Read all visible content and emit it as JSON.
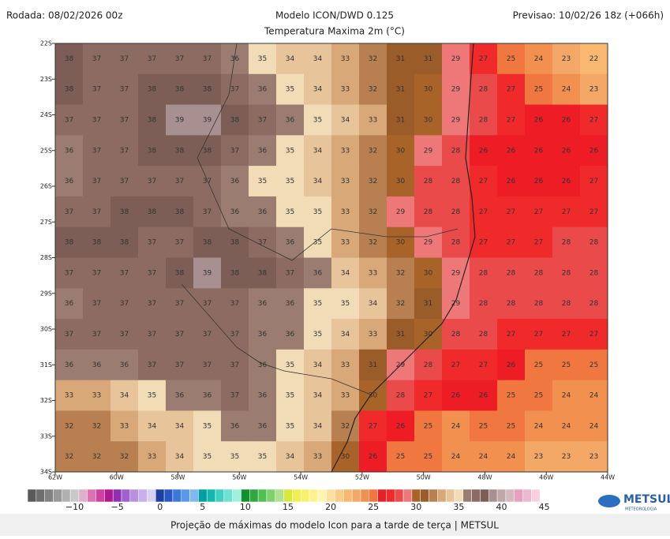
{
  "header": {
    "run": "Rodada: 08/02/2026 00z",
    "title": "Modelo ICON/DWD 0.125",
    "subtitle": "Temperatura Maxima 2m (°C)",
    "forecast": "Previsao: 10/02/26 18z (+066h)"
  },
  "map": {
    "lat_labels": [
      "22S",
      "23S",
      "24S",
      "25S",
      "26S",
      "27S",
      "28S",
      "29S",
      "30S",
      "31S",
      "32S",
      "33S",
      "34S"
    ],
    "lon_labels": [
      "62W",
      "60W",
      "58W",
      "56W",
      "54W",
      "52W",
      "50W",
      "48W",
      "46W",
      "44W"
    ],
    "temperature_grid": [
      [
        38,
        37,
        37,
        37,
        37,
        37,
        36,
        35,
        34,
        34,
        33,
        32,
        31,
        31,
        29,
        27,
        25,
        24,
        23,
        22
      ],
      [
        38,
        37,
        37,
        38,
        38,
        38,
        37,
        36,
        35,
        34,
        33,
        32,
        31,
        30,
        29,
        28,
        27,
        25,
        24,
        23
      ],
      [
        37,
        37,
        37,
        38,
        39,
        39,
        38,
        37,
        36,
        35,
        34,
        33,
        31,
        30,
        29,
        28,
        27,
        26,
        26,
        27
      ],
      [
        36,
        37,
        37,
        38,
        38,
        38,
        37,
        36,
        35,
        34,
        33,
        32,
        30,
        29,
        28,
        26,
        26,
        26,
        26,
        26
      ],
      [
        36,
        37,
        37,
        37,
        37,
        37,
        36,
        35,
        35,
        34,
        33,
        32,
        30,
        28,
        28,
        27,
        26,
        26,
        26,
        27
      ],
      [
        37,
        37,
        38,
        38,
        38,
        37,
        36,
        36,
        35,
        35,
        33,
        32,
        29,
        28,
        28,
        27,
        27,
        27,
        27,
        27
      ],
      [
        38,
        38,
        38,
        37,
        37,
        38,
        38,
        37,
        36,
        35,
        33,
        32,
        30,
        29,
        28,
        27,
        27,
        27,
        28,
        28
      ],
      [
        37,
        37,
        37,
        37,
        38,
        39,
        38,
        38,
        37,
        36,
        34,
        33,
        32,
        30,
        29,
        28,
        28,
        28,
        28,
        28
      ],
      [
        36,
        37,
        37,
        37,
        37,
        37,
        37,
        36,
        36,
        35,
        35,
        34,
        32,
        31,
        29,
        28,
        28,
        28,
        28,
        28
      ],
      [
        37,
        37,
        37,
        37,
        37,
        37,
        37,
        36,
        36,
        35,
        34,
        33,
        31,
        30,
        28,
        28,
        27,
        27,
        27,
        27
      ],
      [
        36,
        36,
        36,
        37,
        37,
        37,
        37,
        36,
        35,
        34,
        33,
        31,
        29,
        28,
        27,
        27,
        26,
        25,
        25,
        25
      ],
      [
        33,
        33,
        34,
        35,
        36,
        36,
        37,
        36,
        35,
        34,
        33,
        30,
        28,
        27,
        26,
        26,
        25,
        25,
        24,
        24
      ],
      [
        32,
        32,
        33,
        34,
        34,
        35,
        36,
        36,
        35,
        34,
        32,
        27,
        26,
        25,
        24,
        25,
        25,
        24,
        24,
        24
      ],
      [
        32,
        32,
        32,
        33,
        34,
        35,
        35,
        35,
        34,
        33,
        30,
        26,
        25,
        25,
        24,
        24,
        24,
        23,
        23,
        23
      ]
    ]
  },
  "colorbar": {
    "range": [
      -15,
      46
    ],
    "colors": [
      "#5a5a5a",
      "#6e6e6e",
      "#828282",
      "#999999",
      "#b0b0b0",
      "#c8c8c8",
      "#e0b0c8",
      "#e070b0",
      "#d040a0",
      "#b01890",
      "#9030b0",
      "#a060d0",
      "#b890e0",
      "#c8b0ec",
      "#d8d0f4",
      "#1f3fa0",
      "#2858c0",
      "#3c78d8",
      "#5a98e8",
      "#80b8f0",
      "#00a0a0",
      "#10b8b0",
      "#40d0c0",
      "#70e0d0",
      "#a0f0e0",
      "#109030",
      "#30a840",
      "#50c050",
      "#80d070",
      "#b0e090",
      "#d8e840",
      "#f0f050",
      "#f8f070",
      "#fff090",
      "#fff4b0",
      "#fde0a0",
      "#fbcc88",
      "#f8b870",
      "#f4a868",
      "#f29050",
      "#f07840",
      "#ee1c24",
      "#f02a2a",
      "#ea4a4a",
      "#ee7878",
      "#a86428",
      "#9a5c28",
      "#b88050",
      "#d8a878",
      "#e8c49a",
      "#f2dcb8",
      "#9a7c70",
      "#8c6c62",
      "#7c5e56",
      "#a89090",
      "#c0a8a8",
      "#d8b8c0",
      "#e8a0c0",
      "#f0b8d0",
      "#f8d0e0",
      "#ffffff"
    ],
    "ticks": [
      {
        "value": -10,
        "label": "−10"
      },
      {
        "value": -5,
        "label": "−5"
      },
      0,
      5,
      10,
      15,
      20,
      25,
      30,
      35,
      40,
      45
    ]
  },
  "logo": {
    "name": "METSUL",
    "tagline": "METEOROLOGIA"
  },
  "caption": "Projeção de máximas do modelo Icon para a tarde de terça | METSUL"
}
